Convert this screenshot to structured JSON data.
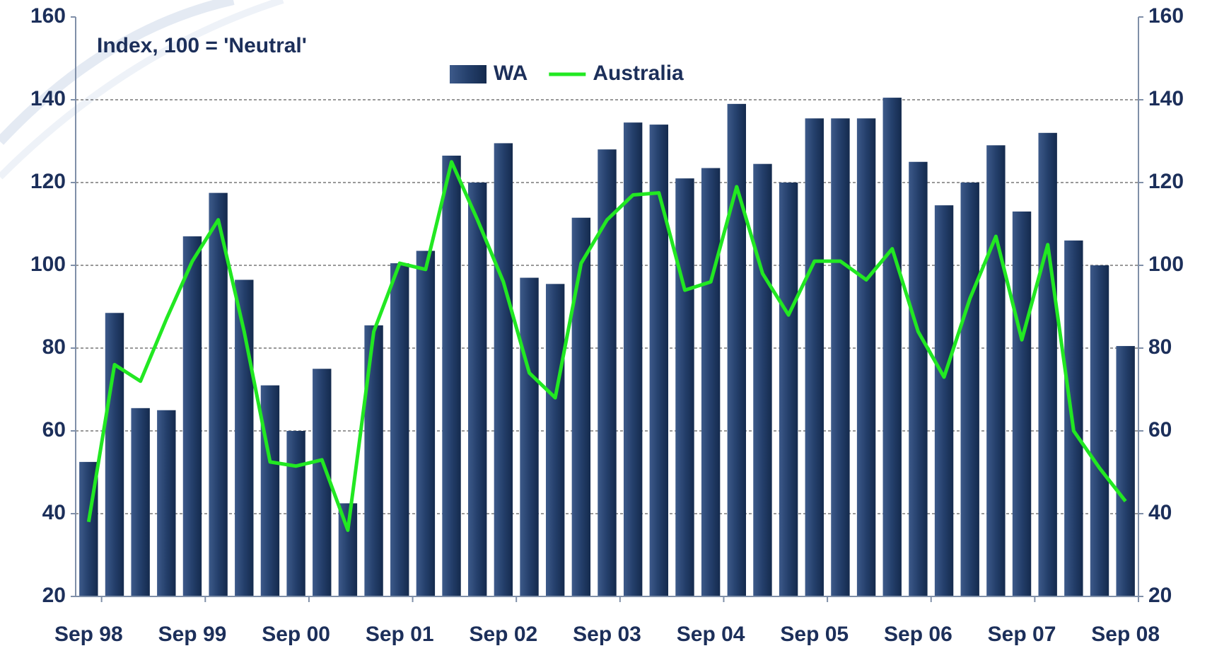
{
  "chart_data": {
    "type": "bar_line",
    "annotation": "Index, 100 = 'Neutral'",
    "categories": [
      "Sep 98",
      null,
      null,
      null,
      "Sep 99",
      null,
      null,
      null,
      "Sep 00",
      null,
      null,
      null,
      "Sep 01",
      null,
      null,
      null,
      "Sep 02",
      null,
      null,
      null,
      "Sep 03",
      null,
      null,
      null,
      "Sep 04",
      null,
      null,
      null,
      "Sep 05",
      null,
      null,
      null,
      "Sep 06",
      null,
      null,
      null,
      "Sep 07",
      null,
      null,
      null,
      "Sep 08"
    ],
    "series": [
      {
        "name": "WA",
        "kind": "bar",
        "color": "#243f6b",
        "values": [
          52.5,
          88.5,
          65.5,
          65,
          107,
          117.5,
          96.5,
          71,
          60,
          75,
          42.5,
          85.5,
          100.5,
          103.5,
          126.5,
          120,
          129.5,
          97,
          95.5,
          111.5,
          128,
          134.5,
          134,
          121,
          123.5,
          139,
          124.5,
          120,
          135.5,
          135.5,
          135.5,
          140.5,
          125,
          114.5,
          120,
          129,
          113,
          132,
          106,
          100,
          80.5
        ]
      },
      {
        "name": "Australia",
        "kind": "line",
        "color": "#22e822",
        "values": [
          38,
          76,
          72,
          87,
          101,
          111,
          84,
          52.5,
          51.5,
          53,
          36,
          84,
          100.5,
          99,
          125,
          111,
          96,
          74,
          68,
          100.5,
          111,
          117,
          117.5,
          94,
          96,
          119,
          98,
          88,
          101,
          101,
          96.5,
          104,
          84,
          73,
          92,
          107,
          82,
          105,
          60,
          51,
          43
        ]
      }
    ],
    "ylim": [
      20,
      160
    ],
    "yticks": [
      20,
      40,
      60,
      80,
      100,
      120,
      140,
      160
    ],
    "y2lim": [
      20,
      160
    ],
    "y2ticks": [
      20,
      40,
      60,
      80,
      100,
      120,
      140,
      160
    ],
    "grid": true
  }
}
